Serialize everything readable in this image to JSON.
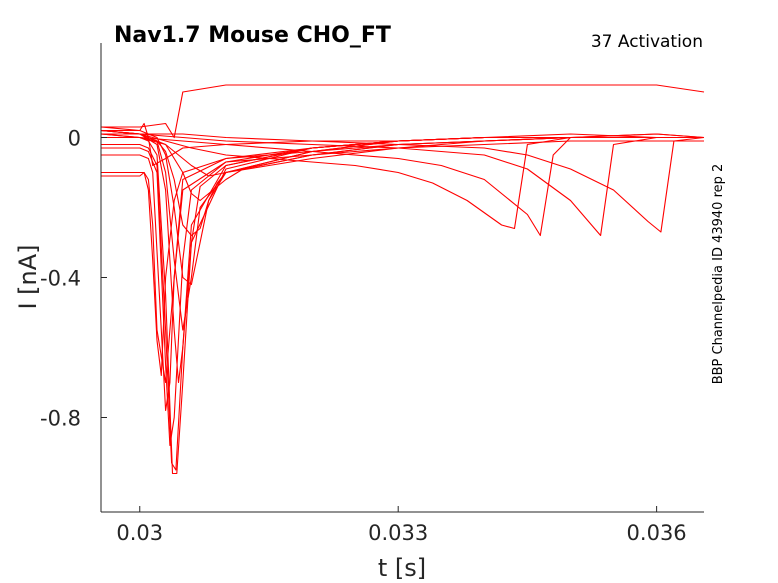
{
  "chart_data": {
    "type": "line",
    "title": "Nav1.7  Mouse  CHO_FT",
    "subtitle": "37  Activation",
    "side_label": "BBP Channelpedia ID 43940 rep 2",
    "xlabel": "t [s]",
    "ylabel": "I [nA]",
    "xlim": [
      0.02955,
      0.03655
    ],
    "ylim": [
      -1.07,
      0.27
    ],
    "x_ticks": [
      0.03,
      0.033,
      0.036
    ],
    "x_tick_labels": [
      "0.03",
      "0.033",
      "0.036"
    ],
    "y_ticks": [
      0,
      -0.4,
      -0.8
    ],
    "y_tick_labels": [
      "0",
      "-0.4",
      "-0.8"
    ],
    "grid": false,
    "line_color": "#ff0000",
    "series": [
      {
        "x": [
          0.02955,
          0.03,
          0.03005,
          0.0301,
          0.03015,
          0.0302,
          0.0303,
          0.0304,
          0.0305,
          0.031,
          0.032,
          0.033,
          0.034,
          0.035,
          0.036,
          0.03655
        ],
        "y": [
          -0.11,
          -0.11,
          -0.1,
          -0.12,
          -0.25,
          -0.55,
          -0.7,
          -0.4,
          -0.15,
          -0.07,
          -0.05,
          -0.03,
          -0.02,
          -0.01,
          -0.01,
          -0.01
        ]
      },
      {
        "x": [
          0.02955,
          0.03,
          0.03005,
          0.0301,
          0.03015,
          0.0302,
          0.03025,
          0.0303,
          0.0304,
          0.0305,
          0.031,
          0.032,
          0.033,
          0.034,
          0.035,
          0.036,
          0.03655
        ],
        "y": [
          -0.1,
          -0.1,
          -0.1,
          -0.15,
          -0.35,
          -0.58,
          -0.68,
          -0.4,
          -0.18,
          -0.1,
          -0.06,
          -0.04,
          -0.02,
          -0.01,
          0.0,
          0.0,
          0.0
        ]
      },
      {
        "x": [
          0.02955,
          0.03,
          0.0301,
          0.03015,
          0.03025,
          0.0303,
          0.03035,
          0.0304,
          0.0305,
          0.031,
          0.032,
          0.033,
          0.034,
          0.035,
          0.036,
          0.03655
        ],
        "y": [
          -0.05,
          -0.05,
          -0.06,
          -0.1,
          -0.55,
          -0.78,
          -0.7,
          -0.4,
          -0.12,
          -0.06,
          -0.03,
          -0.01,
          0.0,
          0.01,
          0.0,
          0.0
        ]
      },
      {
        "x": [
          0.02955,
          0.03,
          0.0301,
          0.0302,
          0.0303,
          0.03035,
          0.0304,
          0.0305,
          0.0306,
          0.031,
          0.032,
          0.033,
          0.034,
          0.035,
          0.036,
          0.03655
        ],
        "y": [
          -0.03,
          -0.03,
          -0.04,
          -0.1,
          -0.65,
          -0.88,
          -0.8,
          -0.35,
          -0.15,
          -0.07,
          -0.03,
          -0.01,
          0.0,
          0.0,
          0.01,
          0.0
        ]
      },
      {
        "x": [
          0.02955,
          0.03,
          0.0301,
          0.0302,
          0.0303,
          0.03037,
          0.03042,
          0.0305,
          0.0306,
          0.031,
          0.032,
          0.033,
          0.034,
          0.035,
          0.036,
          0.03655
        ],
        "y": [
          -0.02,
          -0.02,
          -0.03,
          -0.08,
          -0.55,
          -0.93,
          -0.95,
          -0.6,
          -0.25,
          -0.08,
          -0.03,
          -0.01,
          0.0,
          0.0,
          0.0,
          0.0
        ]
      },
      {
        "x": [
          0.02955,
          0.03,
          0.0301,
          0.0302,
          0.0303,
          0.03038,
          0.03043,
          0.0305,
          0.0306,
          0.031,
          0.032,
          0.033,
          0.034,
          0.035,
          0.036,
          0.03655
        ],
        "y": [
          0.0,
          0.0,
          -0.01,
          -0.05,
          -0.45,
          -0.96,
          -0.96,
          -0.7,
          -0.3,
          -0.09,
          -0.03,
          -0.01,
          0.0,
          0.0,
          0.0,
          0.0
        ]
      },
      {
        "x": [
          0.02955,
          0.03,
          0.0302,
          0.0303,
          0.0304,
          0.03045,
          0.0305,
          0.0306,
          0.0307,
          0.031,
          0.032,
          0.033,
          0.034,
          0.035,
          0.036,
          0.03655
        ],
        "y": [
          0.01,
          0.01,
          -0.02,
          -0.15,
          -0.55,
          -0.7,
          -0.6,
          -0.3,
          -0.14,
          -0.08,
          -0.03,
          -0.01,
          0.0,
          0.0,
          0.0,
          0.0
        ]
      },
      {
        "x": [
          0.02955,
          0.03,
          0.0302,
          0.0303,
          0.0304,
          0.0305,
          0.0306,
          0.0307,
          0.031,
          0.032,
          0.033,
          0.034,
          0.035,
          0.036,
          0.03655
        ],
        "y": [
          0.02,
          0.01,
          -0.01,
          -0.1,
          -0.35,
          -0.55,
          -0.4,
          -0.2,
          -0.1,
          -0.04,
          -0.01,
          0.0,
          0.0,
          0.01,
          0.0
        ]
      },
      {
        "x": [
          0.02955,
          0.03,
          0.0302,
          0.0303,
          0.0304,
          0.0305,
          0.0306,
          0.0307,
          0.0308,
          0.031,
          0.032,
          0.033,
          0.034,
          0.035,
          0.036,
          0.03655
        ],
        "y": [
          0.03,
          0.02,
          0.0,
          -0.05,
          -0.2,
          -0.4,
          -0.42,
          -0.3,
          -0.18,
          -0.1,
          -0.04,
          -0.01,
          0.0,
          0.0,
          0.0,
          0.0
        ]
      },
      {
        "x": [
          0.02955,
          0.03,
          0.0302,
          0.0303,
          0.0304,
          0.0305,
          0.0306,
          0.0307,
          0.0308,
          0.0309,
          0.031,
          0.032,
          0.033,
          0.034,
          0.035,
          0.036,
          0.03655
        ],
        "y": [
          0.01,
          0.0,
          -0.01,
          -0.04,
          -0.12,
          -0.25,
          -0.28,
          -0.26,
          -0.18,
          -0.13,
          -0.1,
          -0.05,
          -0.02,
          -0.01,
          0.0,
          0.0,
          0.0
        ]
      },
      {
        "x": [
          0.02955,
          0.03,
          0.0303,
          0.0305,
          0.0306,
          0.0307,
          0.0308,
          0.031,
          0.0312,
          0.032,
          0.033,
          0.034,
          0.035,
          0.036,
          0.03655
        ],
        "y": [
          0.02,
          0.01,
          -0.02,
          -0.1,
          -0.16,
          -0.18,
          -0.16,
          -0.12,
          -0.09,
          -0.05,
          -0.02,
          -0.01,
          0.0,
          0.0,
          0.0
        ]
      },
      {
        "x": [
          0.02955,
          0.03,
          0.0303,
          0.0306,
          0.0308,
          0.031,
          0.0315,
          0.032,
          0.033,
          0.034,
          0.035,
          0.036,
          0.03655
        ],
        "y": [
          0.01,
          0.0,
          -0.02,
          -0.08,
          -0.11,
          -0.1,
          -0.08,
          -0.06,
          -0.03,
          -0.01,
          0.0,
          0.0,
          0.0
        ]
      },
      {
        "x": [
          0.02955,
          0.03,
          0.0303,
          0.0306,
          0.031,
          0.0315,
          0.032,
          0.0325,
          0.033,
          0.0334,
          0.0338,
          0.0342,
          0.03435,
          0.0345,
          0.035,
          0.036,
          0.03655
        ],
        "y": [
          0.02,
          0.01,
          -0.01,
          -0.03,
          -0.05,
          -0.06,
          -0.07,
          -0.08,
          -0.1,
          -0.13,
          -0.18,
          -0.25,
          -0.26,
          -0.02,
          0.0,
          0.0,
          0.0
        ]
      },
      {
        "x": [
          0.02955,
          0.03,
          0.0305,
          0.031,
          0.032,
          0.033,
          0.0335,
          0.034,
          0.0345,
          0.03465,
          0.0348,
          0.035,
          0.036,
          0.03655
        ],
        "y": [
          0.0,
          0.0,
          -0.01,
          -0.02,
          -0.04,
          -0.06,
          -0.08,
          -0.12,
          -0.22,
          -0.28,
          -0.05,
          0.0,
          0.0,
          0.0
        ]
      },
      {
        "x": [
          0.02955,
          0.03,
          0.0305,
          0.031,
          0.032,
          0.033,
          0.034,
          0.0345,
          0.035,
          0.03535,
          0.0355,
          0.036,
          0.03655
        ],
        "y": [
          0.01,
          0.01,
          0.0,
          -0.01,
          -0.02,
          -0.03,
          -0.05,
          -0.09,
          -0.18,
          -0.28,
          -0.02,
          0.0,
          0.0
        ]
      },
      {
        "x": [
          0.02955,
          0.03,
          0.0305,
          0.031,
          0.032,
          0.033,
          0.034,
          0.0345,
          0.035,
          0.0355,
          0.0359,
          0.03605,
          0.0362,
          0.03655
        ],
        "y": [
          0.02,
          0.01,
          0.01,
          0.0,
          -0.01,
          -0.02,
          -0.03,
          -0.05,
          -0.09,
          -0.15,
          -0.24,
          -0.27,
          -0.01,
          0.0
        ]
      },
      {
        "x": [
          0.02955,
          0.03,
          0.0303,
          0.0304,
          0.0305,
          0.031,
          0.032,
          0.033,
          0.034,
          0.035,
          0.036,
          0.03655
        ],
        "y": [
          0.03,
          0.03,
          0.04,
          0.0,
          0.13,
          0.15,
          0.15,
          0.15,
          0.15,
          0.15,
          0.15,
          0.13
        ]
      },
      {
        "x": [
          0.02955,
          0.03,
          0.03005,
          0.0301,
          0.03015,
          0.0303,
          0.0305,
          0.031,
          0.032,
          0.033,
          0.034,
          0.035,
          0.036,
          0.03655
        ],
        "y": [
          0.02,
          0.02,
          0.04,
          0.0,
          -0.08,
          -0.06,
          -0.03,
          -0.02,
          -0.01,
          -0.01,
          0.0,
          0.0,
          0.0,
          0.0
        ]
      }
    ]
  }
}
